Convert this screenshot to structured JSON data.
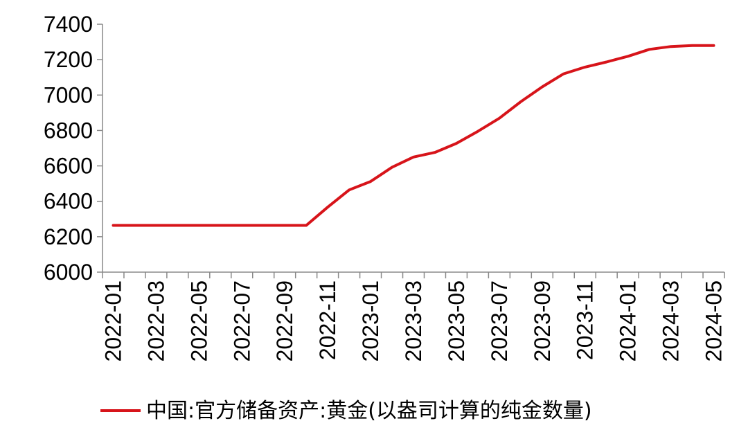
{
  "chart_data": {
    "type": "line",
    "title": "",
    "xlabel": "",
    "ylabel": "",
    "ylim": [
      6000,
      7400
    ],
    "y_ticks": [
      "6000",
      "6200",
      "6400",
      "6600",
      "6800",
      "7000",
      "7200",
      "7400"
    ],
    "x_tick_labels": [
      "2022-01",
      "2022-03",
      "2022-05",
      "2022-07",
      "2022-09",
      "2022-11",
      "2023-01",
      "2023-03",
      "2023-05",
      "2023-07",
      "2023-09",
      "2023-11",
      "2024-01",
      "2024-03",
      "2024-05"
    ],
    "categories": [
      "2022-01",
      "2022-02",
      "2022-03",
      "2022-04",
      "2022-05",
      "2022-06",
      "2022-07",
      "2022-08",
      "2022-09",
      "2022-10",
      "2022-11",
      "2022-12",
      "2023-01",
      "2023-02",
      "2023-03",
      "2023-04",
      "2023-05",
      "2023-06",
      "2023-07",
      "2023-08",
      "2023-09",
      "2023-10",
      "2023-11",
      "2023-12",
      "2024-01",
      "2024-02",
      "2024-03",
      "2024-04",
      "2024-05"
    ],
    "series": [
      {
        "name": "中国:官方储备资产:黄金(以盎司计算的纯金数量)",
        "color": "#d7141a",
        "values": [
          6264,
          6264,
          6264,
          6264,
          6264,
          6264,
          6264,
          6264,
          6264,
          6264,
          6367,
          6464,
          6512,
          6592,
          6650,
          6676,
          6727,
          6795,
          6869,
          6962,
          7046,
          7120,
          7158,
          7187,
          7219,
          7258,
          7274,
          7280,
          7280
        ]
      }
    ],
    "grid": false,
    "legend_position": "bottom"
  }
}
